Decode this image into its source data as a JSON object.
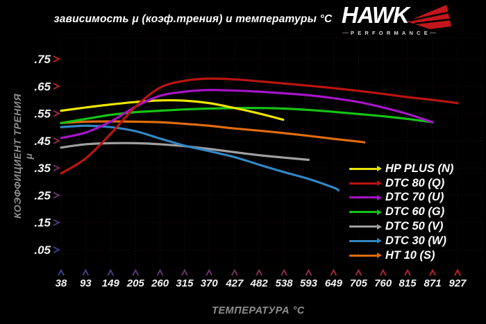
{
  "logo": {
    "brand": "HAWK",
    "sub": "PERFORMANCE",
    "wing_color": "#c3161c"
  },
  "chart_data": {
    "type": "line",
    "title": "зависимость μ (коэф.трения) и температуры °C",
    "xlabel": "ТЕМПЕРАТУРА °C",
    "ylabel": "КОЭФФИЦИЕНТ ТРЕНИЯ μ",
    "x_ticks": [
      38,
      93,
      149,
      205,
      260,
      315,
      370,
      427,
      482,
      538,
      593,
      649,
      705,
      760,
      815,
      871,
      927
    ],
    "y_ticks": [
      0.05,
      0.15,
      0.25,
      0.35,
      0.45,
      0.55,
      0.65,
      0.75
    ],
    "y_tick_labels": [
      ".05",
      ".15",
      ".25",
      ".35",
      ".45",
      ".55",
      ".65",
      ".75"
    ],
    "xlim": [
      38,
      927
    ],
    "ylim": [
      0,
      0.8
    ],
    "grid": "dotted",
    "grid_color": "#2e0f10",
    "legend_position": "bottom-right",
    "axis_gradient": {
      "low": "#3d3d8f",
      "high": "#c51d1d"
    },
    "background": "#000000",
    "series": [
      {
        "name": "HP PLUS (N)",
        "color": "#ece600",
        "x": [
          38,
          93,
          149,
          205,
          260,
          315,
          370,
          427,
          482,
          536
        ],
        "y": [
          0.56,
          0.572,
          0.583,
          0.592,
          0.598,
          0.597,
          0.588,
          0.57,
          0.55,
          0.527
        ]
      },
      {
        "name": "DTC 80 (Q)",
        "color": "#bb1410",
        "x": [
          38,
          93,
          149,
          205,
          260,
          315,
          370,
          427,
          482,
          538,
          593,
          649,
          705,
          760,
          815,
          871,
          927
        ],
        "y": [
          0.33,
          0.385,
          0.475,
          0.575,
          0.645,
          0.67,
          0.678,
          0.675,
          0.668,
          0.66,
          0.652,
          0.643,
          0.633,
          0.622,
          0.61,
          0.6,
          0.588
        ]
      },
      {
        "name": "DTC 70 (U)",
        "color": "#a614c8",
        "x": [
          38,
          93,
          149,
          205,
          260,
          315,
          370,
          427,
          482,
          538,
          593,
          649,
          705,
          760,
          815,
          871
        ],
        "y": [
          0.46,
          0.48,
          0.52,
          0.575,
          0.615,
          0.63,
          0.636,
          0.634,
          0.63,
          0.624,
          0.617,
          0.606,
          0.592,
          0.572,
          0.548,
          0.518
        ]
      },
      {
        "name": "DTC 60 (G)",
        "color": "#15c415",
        "x": [
          38,
          93,
          149,
          205,
          260,
          315,
          370,
          427,
          482,
          538,
          593,
          649,
          705,
          760,
          815,
          871
        ],
        "y": [
          0.515,
          0.53,
          0.545,
          0.555,
          0.56,
          0.565,
          0.568,
          0.57,
          0.57,
          0.568,
          0.563,
          0.556,
          0.548,
          0.54,
          0.53,
          0.518
        ]
      },
      {
        "name": "DTC 50 (V)",
        "color": "#a0a0a0",
        "x": [
          38,
          93,
          149,
          205,
          260,
          315,
          370,
          427,
          482,
          538,
          593
        ],
        "y": [
          0.425,
          0.437,
          0.441,
          0.441,
          0.437,
          0.43,
          0.42,
          0.408,
          0.397,
          0.388,
          0.38
        ]
      },
      {
        "name": "DTC 30 (W)",
        "color": "#3387c4",
        "x": [
          38,
          93,
          149,
          205,
          260,
          315,
          370,
          427,
          482,
          538,
          593,
          649,
          660
        ],
        "y": [
          0.5,
          0.505,
          0.5,
          0.485,
          0.458,
          0.432,
          0.412,
          0.39,
          0.362,
          0.335,
          0.31,
          0.278,
          0.268
        ]
      },
      {
        "name": "HT 10 (S)",
        "color": "#e06c0e",
        "x": [
          38,
          93,
          149,
          205,
          260,
          315,
          370,
          427,
          482,
          538,
          593,
          649,
          705,
          718
        ],
        "y": [
          0.515,
          0.52,
          0.521,
          0.52,
          0.518,
          0.512,
          0.505,
          0.495,
          0.487,
          0.478,
          0.468,
          0.457,
          0.447,
          0.444
        ]
      }
    ],
    "draw_order": [
      4,
      5,
      6,
      3,
      0,
      2,
      1
    ]
  }
}
